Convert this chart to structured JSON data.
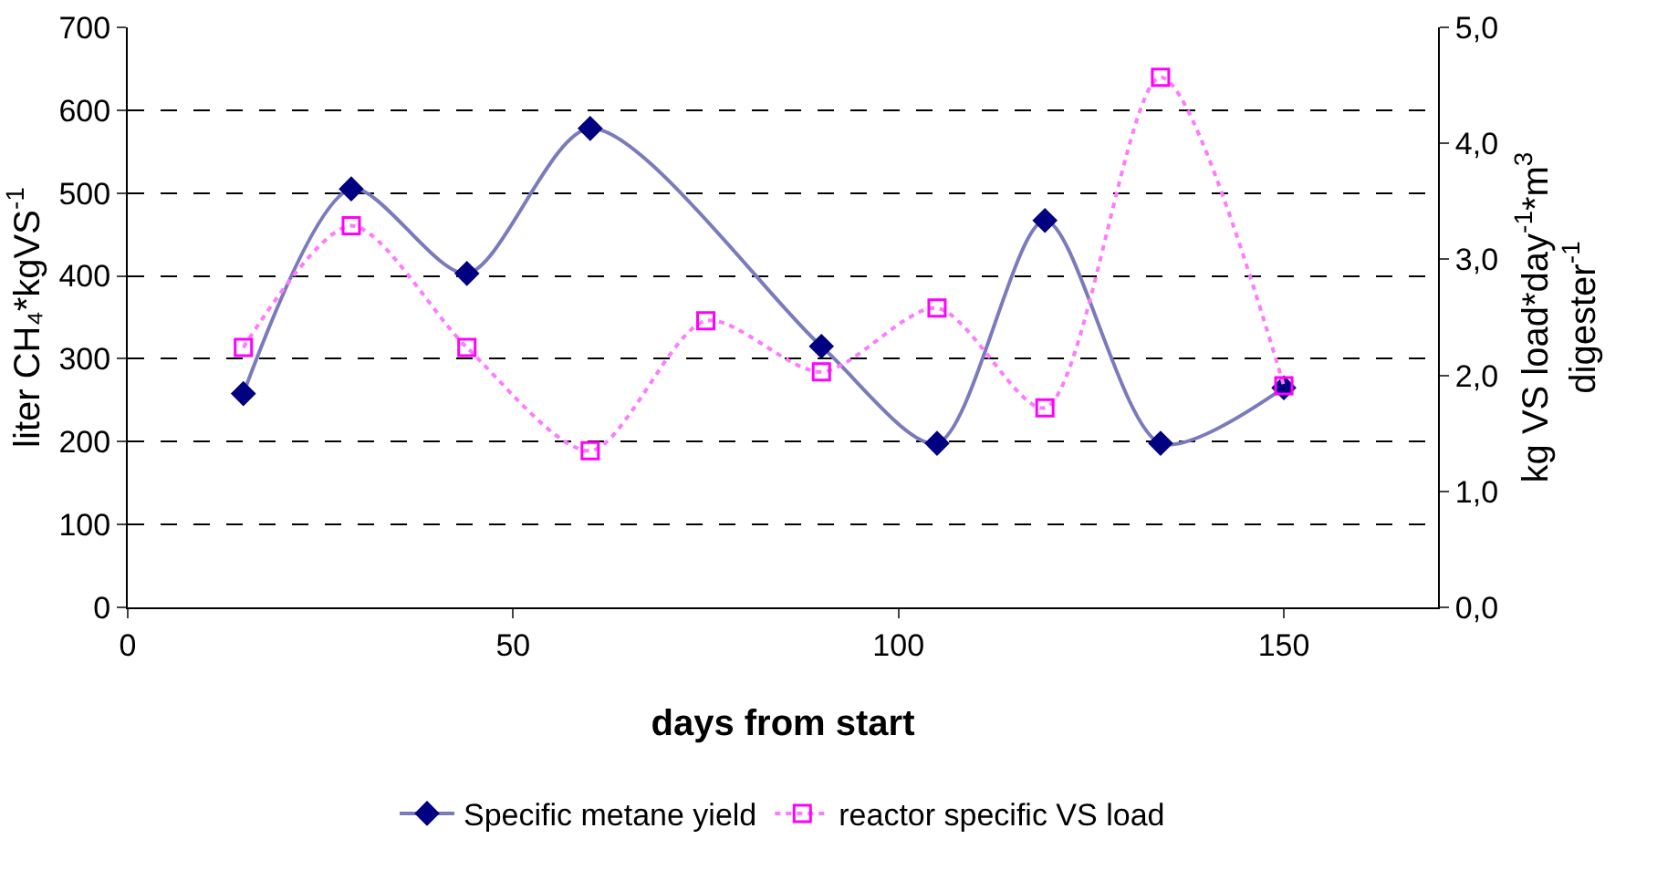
{
  "chart_data": {
    "type": "line",
    "xlabel": "days from start",
    "ylabel": "liter CH₄*kgVS$^{-1}$",
    "y2label": "kg VS load*day$^{-1}$*m$^{3}$ digester$^{-1}$",
    "xlim": [
      0,
      170
    ],
    "xticks": [
      0,
      50,
      100,
      150
    ],
    "ylim": [
      0,
      700
    ],
    "yticks": [
      0,
      100,
      200,
      300,
      400,
      500,
      600,
      700
    ],
    "y2lim": [
      0,
      5
    ],
    "y2ticks": [
      {
        "value": 0,
        "label": "0,0"
      },
      {
        "value": 1,
        "label": "1,0"
      },
      {
        "value": 2,
        "label": "2,0"
      },
      {
        "value": 3,
        "label": "3,0"
      },
      {
        "value": 4,
        "label": "4,0"
      },
      {
        "value": 5,
        "label": "5,0"
      }
    ],
    "grid": "y",
    "legend": "bottom",
    "series": [
      {
        "name": "Specific metane yield",
        "color": "#000080",
        "marker": "diamond",
        "line_style": "solid",
        "x": [
          15,
          29,
          44,
          60,
          90,
          105,
          119,
          134,
          150
        ],
        "values": [
          258,
          505,
          403,
          578,
          315,
          198,
          467,
          198,
          265
        ]
      },
      {
        "name": "reactor specific VS load",
        "color": "#ff00ff",
        "marker": "square",
        "line_style": "dotted",
        "axis": "y2",
        "x": [
          15,
          29,
          44,
          60,
          75,
          90,
          105,
          119,
          134,
          150
        ],
        "values": [
          2.24,
          3.29,
          2.24,
          1.35,
          2.47,
          2.03,
          2.58,
          1.72,
          4.57,
          1.91
        ]
      }
    ]
  }
}
